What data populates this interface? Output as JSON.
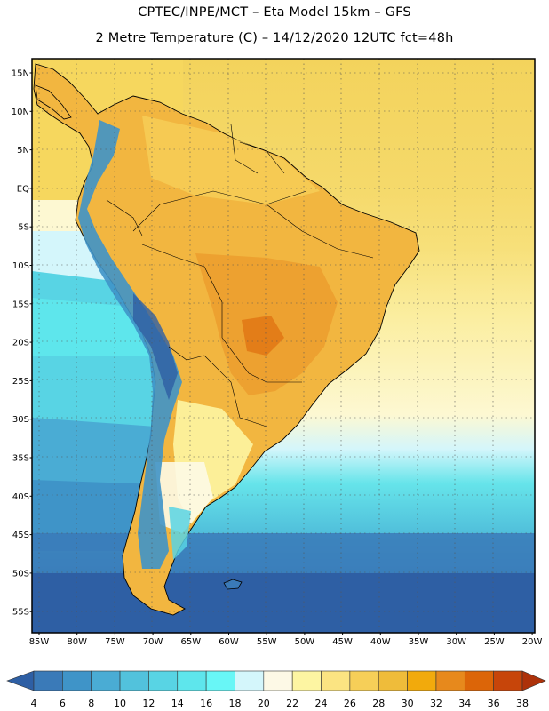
{
  "title_line1": "CPTEC/INPE/MCT –  Eta Model 15km – GFS",
  "title_line2": "2 Metre Temperature (C) – 14/12/2020 12UTC fct=48h",
  "lat_labels": [
    "15N",
    "10N",
    "5N",
    "EQ",
    "5S",
    "10S",
    "15S",
    "20S",
    "25S",
    "30S",
    "35S",
    "40S",
    "45S",
    "50S",
    "55S"
  ],
  "lon_labels": [
    "85W",
    "80W",
    "75W",
    "70W",
    "65W",
    "60W",
    "55W",
    "50W",
    "45W",
    "40W",
    "35W",
    "30W",
    "25W",
    "20W"
  ],
  "colorbar": {
    "labels": [
      "4",
      "6",
      "8",
      "10",
      "12",
      "14",
      "16",
      "18",
      "20",
      "22",
      "24",
      "26",
      "28",
      "30",
      "32",
      "34",
      "36",
      "38"
    ],
    "colors": [
      "#2e5fa4",
      "#3a7ab8",
      "#3f94c8",
      "#4aacd4",
      "#52c2dc",
      "#58d4e4",
      "#5ee6ec",
      "#68f6f6",
      "#d4f6fb",
      "#fdf9e6",
      "#fdf5a2",
      "#fbe482",
      "#f6cf58",
      "#efbc3a",
      "#f2aa0c",
      "#e7891c",
      "#dc6508",
      "#c7450a",
      "#ad320a"
    ]
  }
}
